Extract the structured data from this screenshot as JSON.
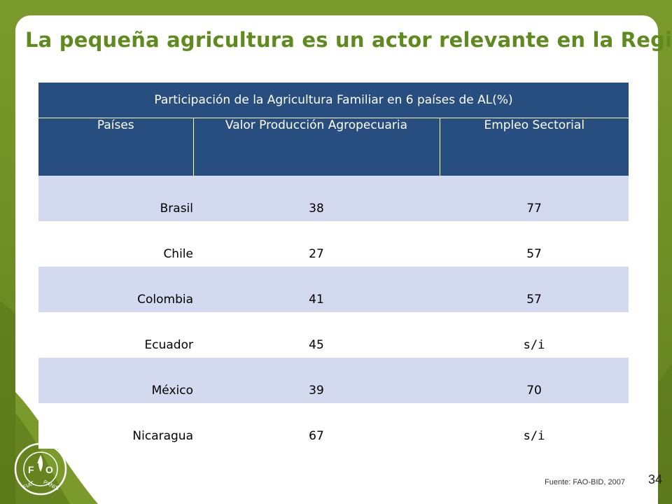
{
  "slide": {
    "title": "La pequeña agricultura es un actor relevante en la Región",
    "source": "Fuente: FAO-BID, 2007",
    "page_number": "34"
  },
  "logo": {
    "left_letter": "F",
    "top_letter": "A",
    "right_letter": "O",
    "motto_left": "FIAT",
    "motto_right": "PANIS"
  },
  "table": {
    "caption": "Participación de la Agricultura Familiar en 6 países de AL(%)",
    "headers": [
      "Países",
      "Valor Producción Agropecuaria",
      "Empleo Sectorial"
    ],
    "rows": [
      {
        "country": "Brasil",
        "production": "38",
        "employment": "77"
      },
      {
        "country": "Chile",
        "production": "27",
        "employment": "57"
      },
      {
        "country": "Colombia",
        "production": "41",
        "employment": "57"
      },
      {
        "country": "Ecuador",
        "production": "45",
        "employment": "s/i"
      },
      {
        "country": "México",
        "production": "39",
        "employment": "70"
      },
      {
        "country": "Nicaragua",
        "production": "67",
        "employment": "s/i"
      }
    ]
  },
  "colors": {
    "header_blue": "#284d7f",
    "row_lavender": "#d3d9ee",
    "title_green": "#5e8a1e",
    "frame_green": "#6f8f25"
  }
}
